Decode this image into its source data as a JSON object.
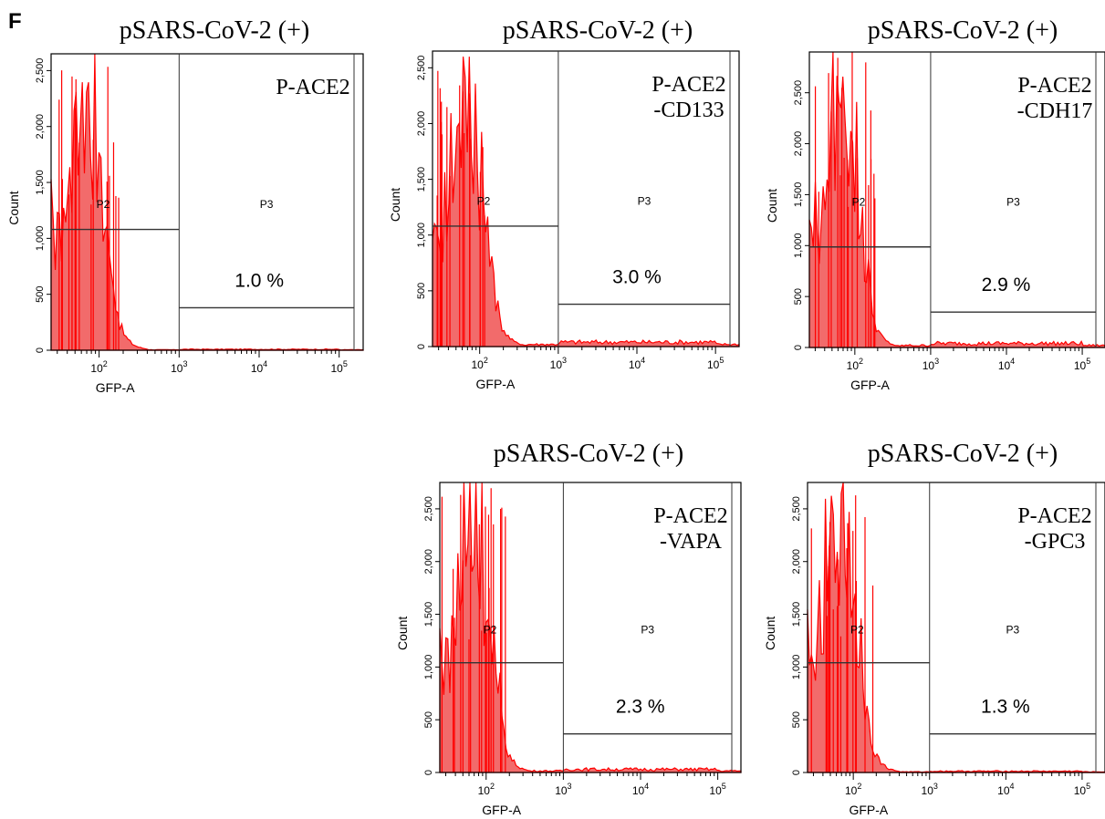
{
  "panel_label": "F",
  "chart_data": [
    {
      "type": "histogram",
      "title": "pSARS-CoV-2 (+)",
      "sample_label": [
        "P-ACE2"
      ],
      "xlabel": "GFP-A",
      "ylabel": "Count",
      "xscale": "log",
      "xticks": [
        "10^2",
        "10^3",
        "10^4",
        "10^5"
      ],
      "yticks": [
        "0",
        "500",
        "1,000",
        "1,500",
        "2,000",
        "2,500"
      ],
      "ylim": [
        0,
        2650
      ],
      "gates": [
        {
          "name": "P2",
          "range": [
            25,
            1000
          ],
          "level": 180
        },
        {
          "name": "P3",
          "range": [
            1000,
            200000
          ],
          "level": 95,
          "percent": "1.0 %"
        }
      ],
      "peak_count": 2650,
      "positive_tail_count": 8
    },
    {
      "type": "histogram",
      "title": "pSARS-CoV-2 (+)",
      "sample_label": [
        "P-ACE2",
        "-CD133"
      ],
      "xlabel": "GFP-A",
      "ylabel": "Count",
      "xscale": "log",
      "xticks": [
        "10^2",
        "10^3",
        "10^4",
        "10^5"
      ],
      "yticks": [
        "0",
        "500",
        "1,000",
        "1,500",
        "2,000",
        "2,500"
      ],
      "ylim": [
        0,
        2650
      ],
      "gates": [
        {
          "name": "P2",
          "range": [
            25,
            1000
          ],
          "level": 180
        },
        {
          "name": "P3",
          "range": [
            1000,
            200000
          ],
          "level": 95,
          "percent": "3.0 %"
        }
      ],
      "peak_count": 2600,
      "positive_tail_count": 40
    },
    {
      "type": "histogram",
      "title": "pSARS-CoV-2 (+)",
      "sample_label": [
        "P-ACE2",
        "-CDH17"
      ],
      "xlabel": "GFP-A",
      "ylabel": "Count",
      "xscale": "log",
      "xticks": [
        "10^2",
        "10^3",
        "10^4",
        "10^5"
      ],
      "yticks": [
        "0",
        "500",
        "1,000",
        "1,500",
        "2,000",
        "2,500"
      ],
      "ylim": [
        0,
        2900
      ],
      "gates": [
        {
          "name": "P2",
          "range": [
            25,
            1000
          ],
          "level": 180
        },
        {
          "name": "P3",
          "range": [
            1000,
            200000
          ],
          "level": 95,
          "percent": "2.9 %"
        }
      ],
      "peak_count": 2900,
      "positive_tail_count": 40
    },
    {
      "type": "histogram",
      "title": "pSARS-CoV-2 (+)",
      "sample_label": [
        "P-ACE2",
        "-VAPA"
      ],
      "xlabel": "GFP-A",
      "ylabel": "Count",
      "xscale": "log",
      "xticks": [
        "10^2",
        "10^3",
        "10^4",
        "10^5"
      ],
      "yticks": [
        "0",
        "500",
        "1,000",
        "1,500",
        "2,000",
        "2,500"
      ],
      "ylim": [
        0,
        2750
      ],
      "gates": [
        {
          "name": "P2",
          "range": [
            25,
            1000
          ],
          "level": 180
        },
        {
          "name": "P3",
          "range": [
            1000,
            200000
          ],
          "level": 95,
          "percent": "2.3 %"
        }
      ],
      "peak_count": 2750,
      "positive_tail_count": 30
    },
    {
      "type": "histogram",
      "title": "pSARS-CoV-2 (+)",
      "sample_label": [
        "P-ACE2",
        "-GPC3"
      ],
      "xlabel": "GFP-A",
      "ylabel": "Count",
      "xscale": "log",
      "xticks": [
        "10^2",
        "10^3",
        "10^4",
        "10^5"
      ],
      "yticks": [
        "0",
        "500",
        "1,000",
        "1,500",
        "2,000",
        "2,500"
      ],
      "ylim": [
        0,
        2750
      ],
      "gates": [
        {
          "name": "P2",
          "range": [
            25,
            1000
          ],
          "level": 180
        },
        {
          "name": "P3",
          "range": [
            1000,
            200000
          ],
          "level": 95,
          "percent": "1.3 %"
        }
      ],
      "peak_count": 2750,
      "positive_tail_count": 12
    }
  ],
  "colors": {
    "histogram_fill": "#f26b6b",
    "histogram_stroke": "#ff0000",
    "frame": "#000000",
    "gate_line": "#333333"
  }
}
